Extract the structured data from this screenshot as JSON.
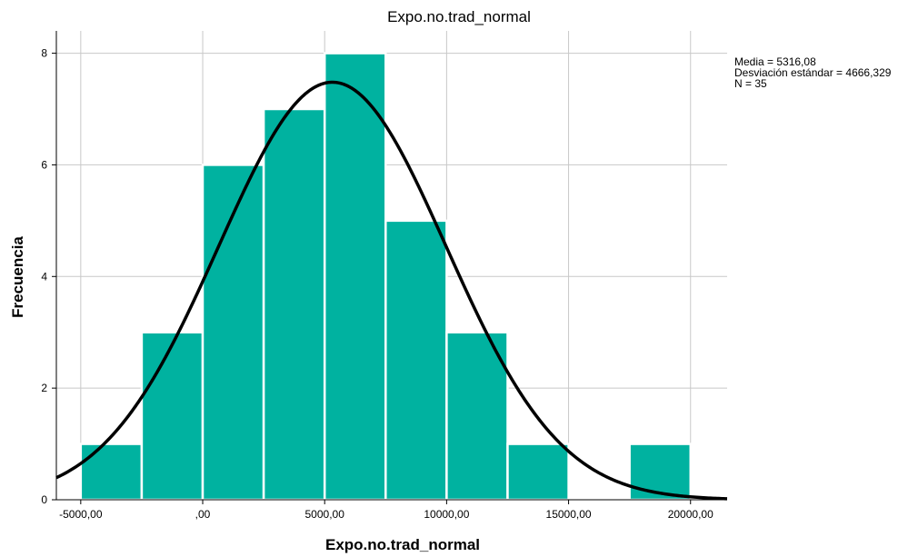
{
  "chart_data": {
    "type": "bar",
    "title": "Expo.no.trad_normal",
    "xlabel": "Expo.no.trad_normal",
    "ylabel": "Frecuencia",
    "bins": [
      {
        "x0": -5000,
        "x1": -2500,
        "count": 1
      },
      {
        "x0": -2500,
        "x1": 0,
        "count": 3
      },
      {
        "x0": 0,
        "x1": 2500,
        "count": 6
      },
      {
        "x0": 2500,
        "x1": 5000,
        "count": 7
      },
      {
        "x0": 5000,
        "x1": 7500,
        "count": 8
      },
      {
        "x0": 7500,
        "x1": 10000,
        "count": 5
      },
      {
        "x0": 10000,
        "x1": 12500,
        "count": 3
      },
      {
        "x0": 12500,
        "x1": 15000,
        "count": 1
      },
      {
        "x0": 15000,
        "x1": 17500,
        "count": 0
      },
      {
        "x0": 17500,
        "x1": 20000,
        "count": 1
      }
    ],
    "normal_curve": {
      "mean": 5316.08,
      "sd": 4666.329,
      "n": 35,
      "bin_width": 2500
    },
    "xlim": [
      -6000,
      21500
    ],
    "ylim": [
      0,
      8.4
    ],
    "x_ticks": [
      {
        "value": -5000,
        "label": "-5000,00"
      },
      {
        "value": 0,
        "label": ",00"
      },
      {
        "value": 5000,
        "label": "5000,00"
      },
      {
        "value": 10000,
        "label": "10000,00"
      },
      {
        "value": 15000,
        "label": "15000,00"
      },
      {
        "value": 20000,
        "label": "20000,00"
      }
    ],
    "y_ticks": [
      {
        "value": 0,
        "label": "0"
      },
      {
        "value": 2,
        "label": "2"
      },
      {
        "value": 4,
        "label": "4"
      },
      {
        "value": 6,
        "label": "6"
      },
      {
        "value": 8,
        "label": "8"
      }
    ],
    "grid": true,
    "legend_position": "top-right",
    "stats_lines": [
      "Media = 5316,08",
      "Desviación estándar = 4666,329",
      "N = 35"
    ],
    "colors": {
      "bar_fill": "#00b2a0",
      "bar_stroke": "#ffffff",
      "curve": "#000000",
      "grid": "#c8c8c8",
      "axis": "#000000"
    }
  }
}
